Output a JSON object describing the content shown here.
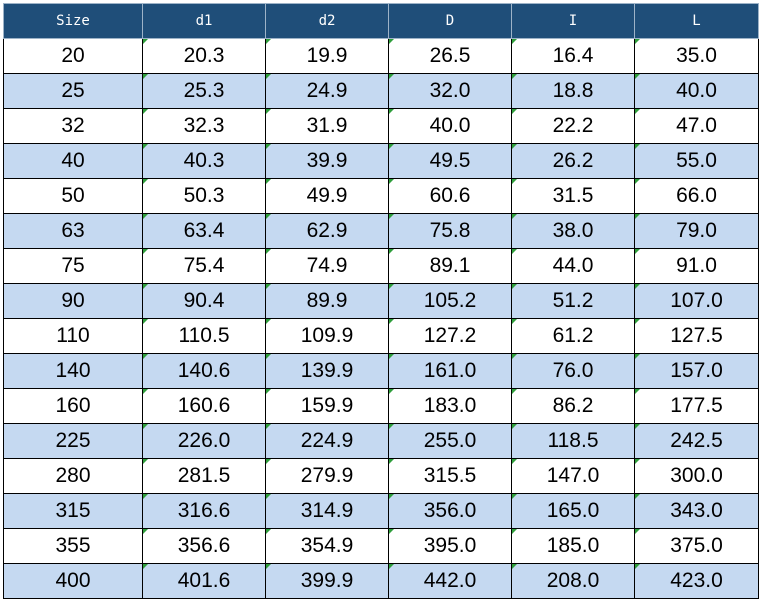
{
  "table": {
    "headers": [
      "Size",
      "d1",
      "d2",
      "D",
      "I",
      "L"
    ],
    "rows": [
      [
        "20",
        "20.3",
        "19.9",
        "26.5",
        "16.4",
        "35.0"
      ],
      [
        "25",
        "25.3",
        "24.9",
        "32.0",
        "18.8",
        "40.0"
      ],
      [
        "32",
        "32.3",
        "31.9",
        "40.0",
        "22.2",
        "47.0"
      ],
      [
        "40",
        "40.3",
        "39.9",
        "49.5",
        "26.2",
        "55.0"
      ],
      [
        "50",
        "50.3",
        "49.9",
        "60.6",
        "31.5",
        "66.0"
      ],
      [
        "63",
        "63.4",
        "62.9",
        "75.8",
        "38.0",
        "79.0"
      ],
      [
        "75",
        "75.4",
        "74.9",
        "89.1",
        "44.0",
        "91.0"
      ],
      [
        "90",
        "90.4",
        "89.9",
        "105.2",
        "51.2",
        "107.0"
      ],
      [
        "110",
        "110.5",
        "109.9",
        "127.2",
        "61.2",
        "127.5"
      ],
      [
        "140",
        "140.6",
        "139.9",
        "161.0",
        "76.0",
        "157.0"
      ],
      [
        "160",
        "160.6",
        "159.9",
        "183.0",
        "86.2",
        "177.5"
      ],
      [
        "225",
        "226.0",
        "224.9",
        "255.0",
        "118.5",
        "242.5"
      ],
      [
        "280",
        "281.5",
        "279.9",
        "315.5",
        "147.0",
        "300.0"
      ],
      [
        "315",
        "316.6",
        "314.9",
        "356.0",
        "165.0",
        "343.0"
      ],
      [
        "355",
        "356.6",
        "354.9",
        "395.0",
        "185.0",
        "375.0"
      ],
      [
        "400",
        "401.6",
        "399.9",
        "442.0",
        "208.0",
        "423.0"
      ]
    ]
  },
  "colors": {
    "header_background": "#1f4e79",
    "header_text": "#ffffff",
    "row_odd": "#ffffff",
    "row_even": "#c5d9f1",
    "cell_marker": "#2e9e3a"
  }
}
